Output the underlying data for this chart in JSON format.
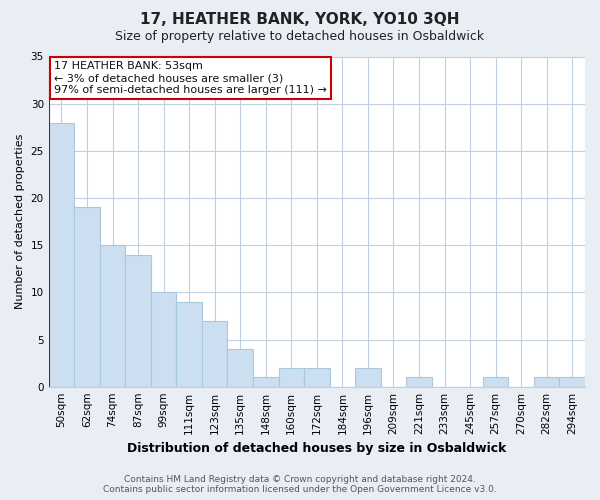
{
  "title": "17, HEATHER BANK, YORK, YO10 3QH",
  "subtitle": "Size of property relative to detached houses in Osbaldwick",
  "xlabel": "Distribution of detached houses by size in Osbaldwick",
  "ylabel": "Number of detached properties",
  "categories": [
    "50sqm",
    "62sqm",
    "74sqm",
    "87sqm",
    "99sqm",
    "111sqm",
    "123sqm",
    "135sqm",
    "148sqm",
    "160sqm",
    "172sqm",
    "184sqm",
    "196sqm",
    "209sqm",
    "221sqm",
    "233sqm",
    "245sqm",
    "257sqm",
    "270sqm",
    "282sqm",
    "294sqm"
  ],
  "values": [
    28,
    19,
    15,
    14,
    10,
    9,
    7,
    4,
    1,
    2,
    2,
    0,
    2,
    0,
    1,
    0,
    0,
    1,
    0,
    1,
    1
  ],
  "bar_color": "#ccdff0",
  "bar_edge_color": "#a8c8e0",
  "highlight_edge_color": "#cc0000",
  "ylim": [
    0,
    35
  ],
  "yticks": [
    0,
    5,
    10,
    15,
    20,
    25,
    30,
    35
  ],
  "annotation_title": "17 HEATHER BANK: 53sqm",
  "annotation_line1": "← 3% of detached houses are smaller (3)",
  "annotation_line2": "97% of semi-detached houses are larger (111) →",
  "annotation_box_edge_color": "#cc0000",
  "footer_line1": "Contains HM Land Registry data © Crown copyright and database right 2024.",
  "footer_line2": "Contains public sector information licensed under the Open Government Licence v3.0.",
  "background_color": "#e8eef4",
  "plot_background_color": "#ffffff",
  "grid_color": "#c0d0e0",
  "title_fontsize": 11,
  "subtitle_fontsize": 9,
  "xlabel_fontsize": 9,
  "ylabel_fontsize": 8,
  "tick_fontsize": 7.5,
  "footer_fontsize": 6.5
}
